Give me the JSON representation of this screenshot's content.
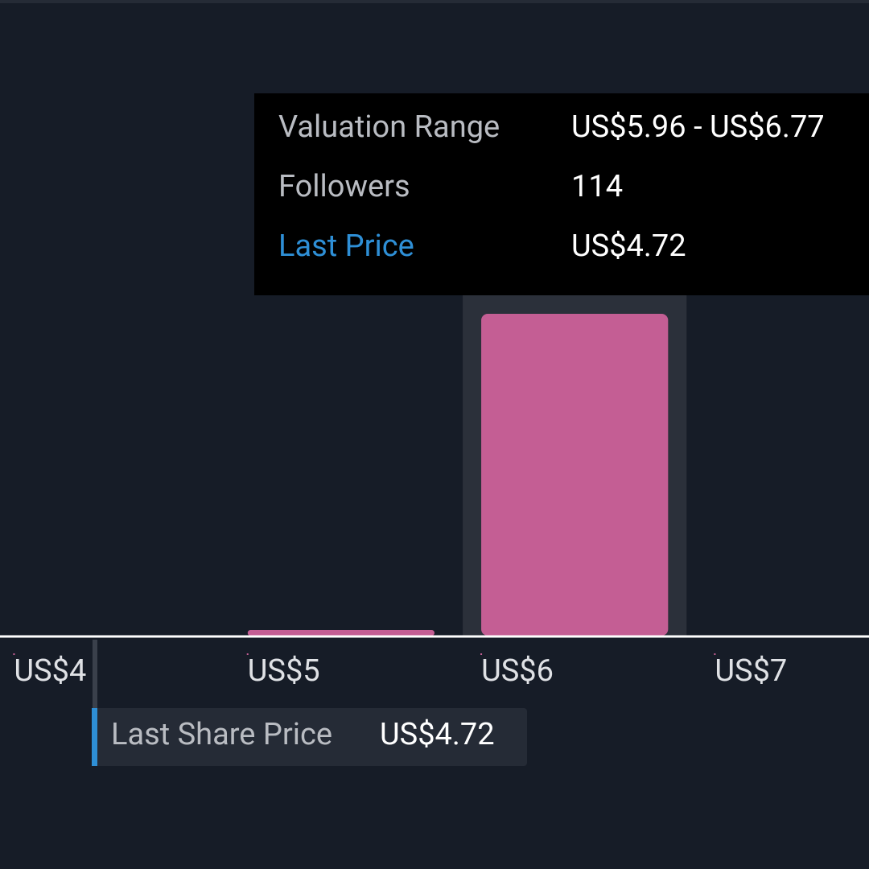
{
  "chart_data": {
    "type": "histogram",
    "bins": [
      5,
      6,
      7
    ],
    "counts": [
      2,
      114
    ],
    "color": "#c45e94",
    "xlim": [
      3.94,
      7.66
    ],
    "ylim": [
      0,
      130
    ],
    "xticks": [
      {
        "value": 4,
        "label": "US$4"
      },
      {
        "value": 5,
        "label": "US$5"
      },
      {
        "value": 6,
        "label": "US$6"
      },
      {
        "value": 7,
        "label": "US$7"
      }
    ],
    "highlight": 1,
    "tooltip": {
      "range_label": "Valuation Range",
      "range_value": "US$5.96 - US$6.77",
      "followers_label": "Followers",
      "last_price_label": "Last Price"
    },
    "last_price": {
      "label": "Last Share Price",
      "value": "US$4.72"
    }
  }
}
